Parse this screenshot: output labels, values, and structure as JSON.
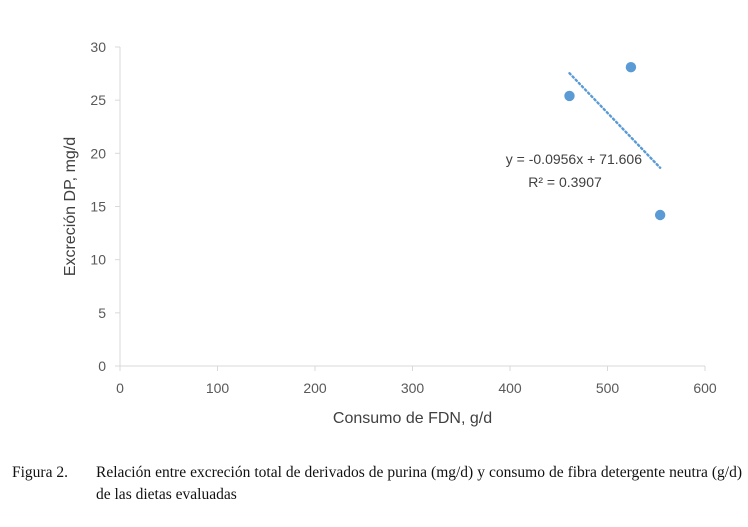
{
  "chart_data": {
    "type": "scatter",
    "xlabel": "Consumo de FDN, g/d",
    "ylabel": "Excreción DP, mg/d",
    "xlim": [
      0,
      600
    ],
    "ylim": [
      0,
      30
    ],
    "x_ticks": [
      "0",
      "100",
      "200",
      "300",
      "400",
      "500",
      "600"
    ],
    "y_ticks": [
      "0",
      "5",
      "10",
      "15",
      "20",
      "25",
      "30"
    ],
    "grid": false,
    "legend": "none",
    "colors": {
      "points": "#5b9bd5",
      "trendline": "#5b9bd5",
      "axis": "#d9d9d9"
    },
    "series": [
      {
        "x": [
          461,
          524,
          554
        ],
        "y": [
          25.4,
          28.1,
          14.2
        ]
      }
    ],
    "trendline": {
      "type": "linear",
      "slope": -0.0956,
      "intercept": 71.606,
      "x_range": [
        461,
        554
      ],
      "equation": "y = -0.0956x + 71.606",
      "r2": "R² = 0.3907"
    }
  },
  "caption": {
    "label": "Figura 2.",
    "text": "Relación entre excreción total de derivados de purina (mg/d) y consumo de fibra detergente neutra (g/d) de las dietas evaluadas"
  }
}
